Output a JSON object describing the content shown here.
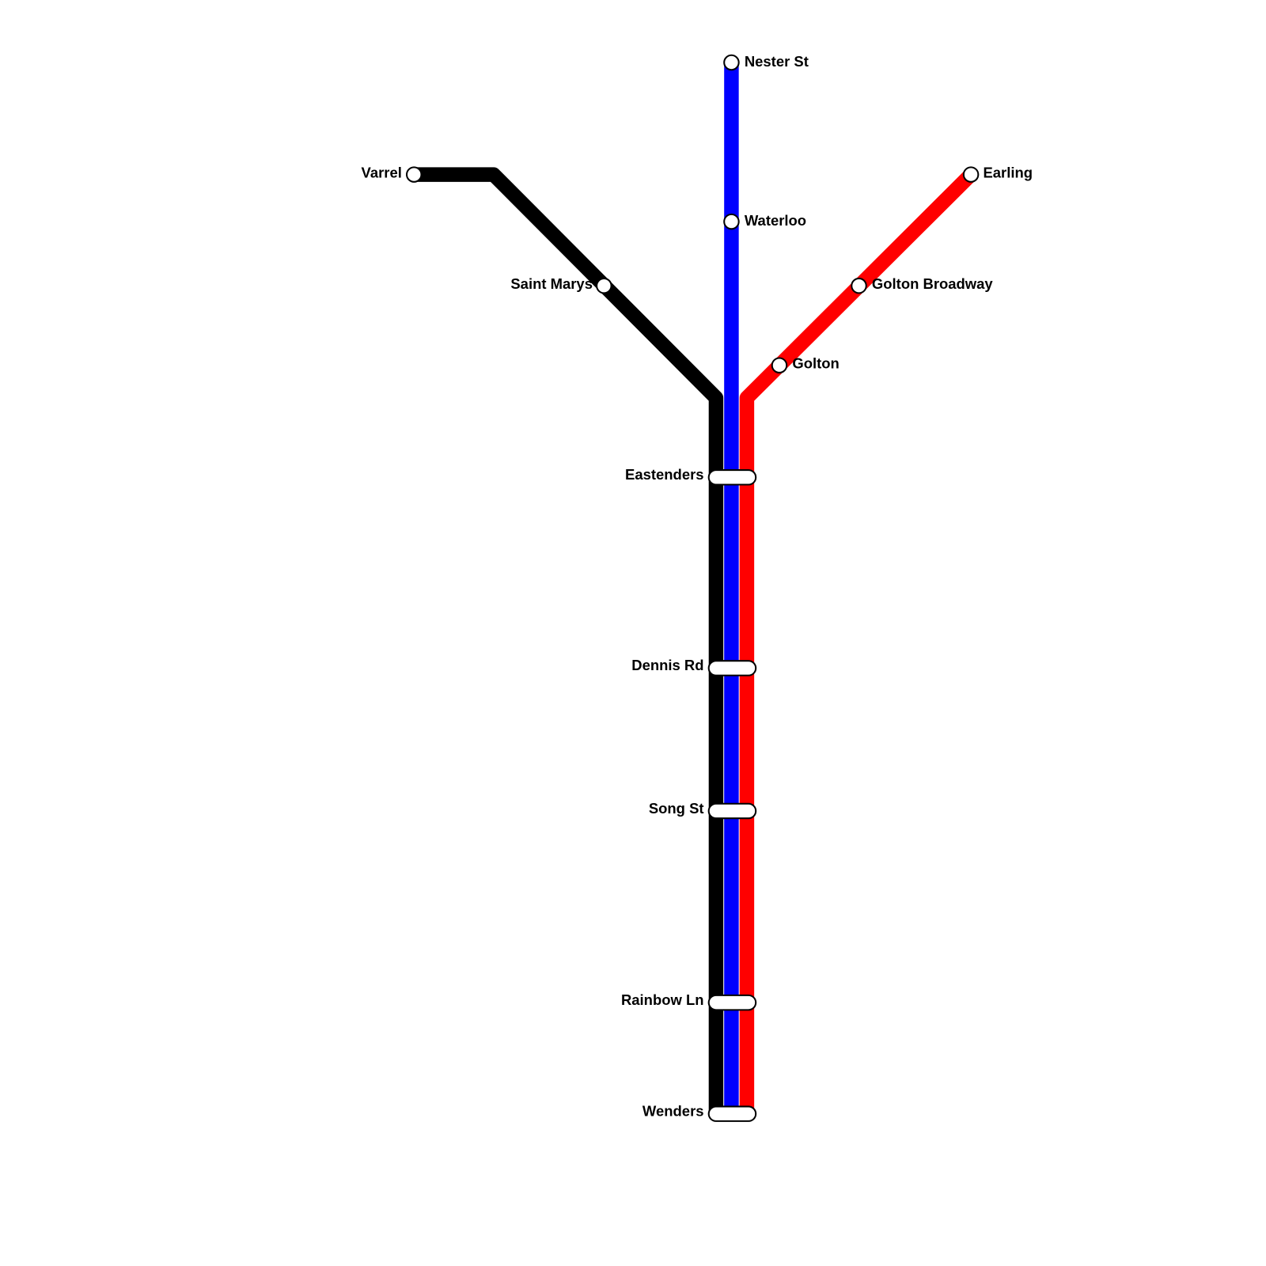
{
  "stations": [
    {
      "label": "Nester St"
    },
    {
      "label": "Waterloo"
    },
    {
      "label": "Varrel"
    },
    {
      "label": "Saint Marys"
    },
    {
      "label": "Earling"
    },
    {
      "label": "Golton Broadway"
    },
    {
      "label": "Golton"
    },
    {
      "label": "Eastenders"
    },
    {
      "label": "Dennis Rd"
    },
    {
      "label": "Song St"
    },
    {
      "label": "Rainbow Ln"
    },
    {
      "label": "Wenders"
    }
  ]
}
